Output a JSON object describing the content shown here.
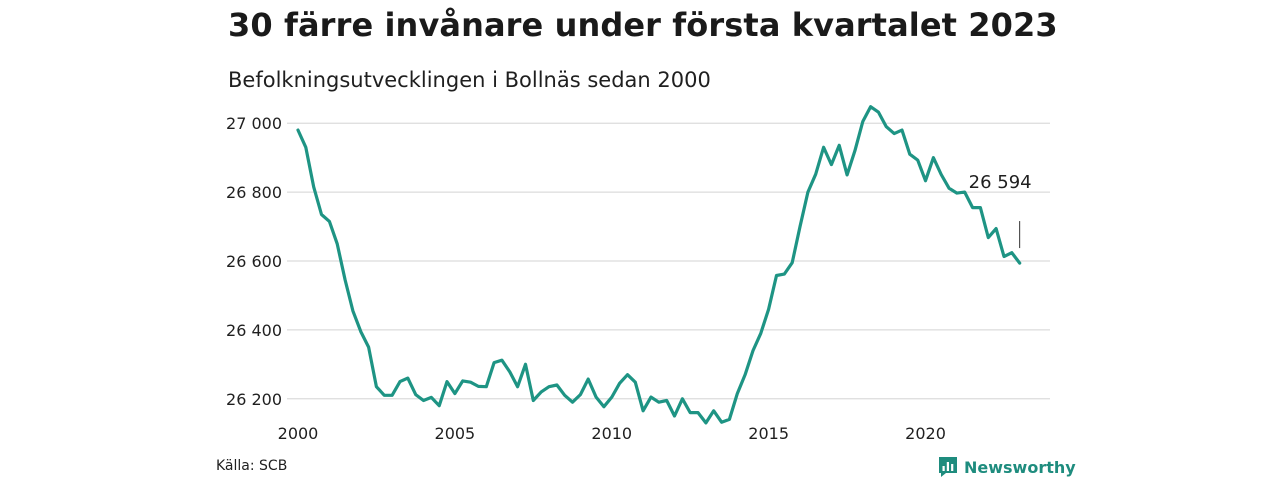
{
  "chart_data": {
    "type": "line",
    "title": "30 färre invånare under första kvartalet 2023",
    "subtitle": "Befolkningsutvecklingen i Bollnäs sedan 2000",
    "xlabel": "",
    "ylabel": "",
    "xlim": [
      2000,
      2023.25
    ],
    "ylim": [
      26150,
      27050
    ],
    "x_ticks": [
      2000,
      2005,
      2010,
      2015,
      2020
    ],
    "x_tick_labels": [
      "2000",
      "2005",
      "2010",
      "2015",
      "2020"
    ],
    "y_ticks": [
      26200,
      26400,
      26600,
      26800,
      27000
    ],
    "y_tick_labels": [
      "26 200",
      "26 400",
      "26 600",
      "26 800",
      "27 000"
    ],
    "grid": "horizontal",
    "line_color": "#1e9484",
    "series": [
      {
        "x": [
          2000.0,
          2000.25,
          2000.5,
          2000.75,
          2001.0,
          2001.25,
          2001.5,
          2001.75,
          2002.0,
          2002.25,
          2002.5,
          2002.75,
          2003.0,
          2003.25,
          2003.5,
          2003.75,
          2004.0,
          2004.25,
          2004.5,
          2004.75,
          2005.0,
          2005.25,
          2005.5,
          2005.75,
          2006.0,
          2006.25,
          2006.5,
          2006.75,
          2007.0,
          2007.25,
          2007.5,
          2007.75,
          2008.0,
          2008.25,
          2008.5,
          2008.75,
          2009.0,
          2009.25,
          2009.5,
          2009.75,
          2010.0,
          2010.25,
          2010.5,
          2010.75,
          2011.0,
          2011.25,
          2011.5,
          2011.75,
          2012.0,
          2012.25,
          2012.5,
          2012.75,
          2013.0,
          2013.25,
          2013.5,
          2013.75,
          2014.0,
          2014.25,
          2014.5,
          2014.75,
          2015.0,
          2015.25,
          2015.5,
          2015.75,
          2016.0,
          2016.25,
          2016.5,
          2016.75,
          2017.0,
          2017.25,
          2017.5,
          2017.75,
          2018.0,
          2018.25,
          2018.5,
          2018.75,
          2019.0,
          2019.25,
          2019.5,
          2019.75,
          2020.0,
          2020.25,
          2020.5,
          2020.75,
          2021.0,
          2021.25,
          2021.5,
          2021.75,
          2022.0,
          2022.25,
          2022.5,
          2022.75,
          2023.0
        ],
        "values": [
          26980,
          26930,
          26815,
          26735,
          26715,
          26650,
          26545,
          26455,
          26395,
          26350,
          26235,
          26210,
          26210,
          26250,
          26260,
          26212,
          26195,
          26204,
          26180,
          26250,
          26215,
          26252,
          26248,
          26236,
          26235,
          26305,
          26312,
          26278,
          26235,
          26300,
          26195,
          26220,
          26235,
          26240,
          26210,
          26190,
          26212,
          26257,
          26205,
          26177,
          26205,
          26245,
          26270,
          26248,
          26165,
          26205,
          26190,
          26195,
          26150,
          26200,
          26160,
          26160,
          26130,
          26165,
          26132,
          26140,
          26215,
          26270,
          26340,
          26390,
          26460,
          26558,
          26562,
          26595,
          26700,
          26800,
          26852,
          26930,
          26880,
          26936,
          26850,
          26920,
          27005,
          27048,
          27032,
          26990,
          26970,
          26980,
          26910,
          26893,
          26833,
          26900,
          26851,
          26811,
          26797,
          26800,
          26755,
          26755,
          26668,
          26694,
          26613,
          26624,
          26594
        ]
      }
    ],
    "annotations": [
      {
        "x": 2023.0,
        "y": 26594,
        "text": "26 594"
      }
    ]
  },
  "source": "Källa: SCB",
  "brand": {
    "name": "Newsworthy",
    "icon": "chart-speech-bubble-icon",
    "color": "#1e8c7e"
  }
}
